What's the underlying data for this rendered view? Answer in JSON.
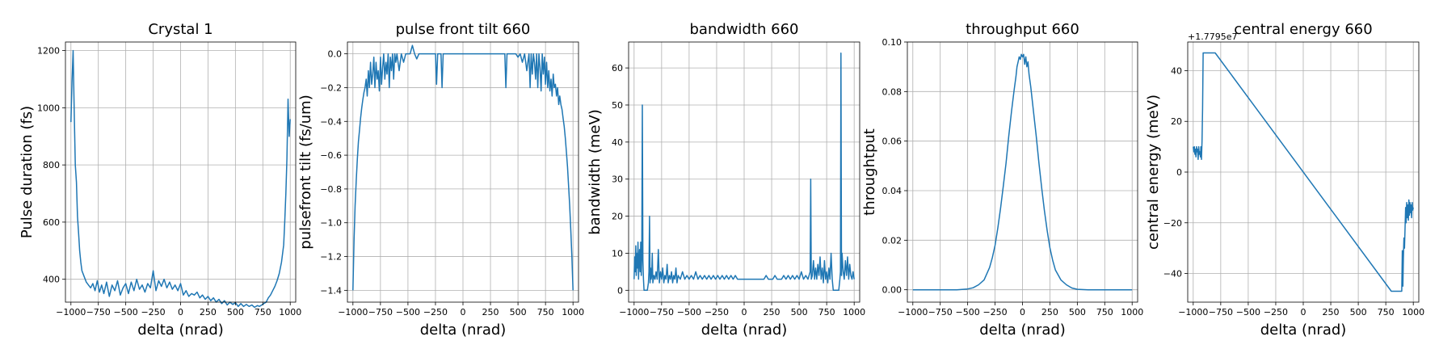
{
  "figure": {
    "series_color": "#1f77b4"
  },
  "chart_data": [
    {
      "type": "line",
      "title": "Crystal 1",
      "xlabel": "delta (nrad)",
      "ylabel": "Pulse duration (fs)",
      "xlim": [
        -1050,
        1050
      ],
      "ylim": [
        320,
        1230
      ],
      "xticks": [
        -1000,
        -750,
        -500,
        -250,
        0,
        250,
        500,
        750,
        1000
      ],
      "xtick_labels": [
        "−1000",
        "−750",
        "−500",
        "−250",
        "0",
        "250",
        "500",
        "750",
        "1000"
      ],
      "yticks": [
        400,
        600,
        800,
        1000,
        1200
      ],
      "ytick_labels": [
        "400",
        "600",
        "800",
        "1000",
        "1200"
      ],
      "offset_text": "",
      "grid": true,
      "x": [
        -1000,
        -990,
        -980,
        -970,
        -960,
        -950,
        -940,
        -930,
        -920,
        -910,
        -900,
        -880,
        -860,
        -840,
        -820,
        -800,
        -780,
        -760,
        -740,
        -720,
        -700,
        -675,
        -650,
        -625,
        -600,
        -575,
        -550,
        -525,
        -500,
        -475,
        -450,
        -425,
        -400,
        -375,
        -350,
        -325,
        -300,
        -275,
        -250,
        -225,
        -200,
        -175,
        -150,
        -125,
        -100,
        -75,
        -50,
        -25,
        0,
        25,
        50,
        75,
        100,
        125,
        150,
        175,
        200,
        225,
        250,
        275,
        300,
        325,
        350,
        375,
        400,
        425,
        450,
        475,
        500,
        525,
        550,
        575,
        600,
        625,
        650,
        675,
        700,
        720,
        740,
        760,
        780,
        800,
        820,
        840,
        860,
        880,
        900,
        920,
        940,
        950,
        960,
        970,
        980,
        990,
        1000
      ],
      "y": [
        950,
        1090,
        1200,
        980,
        800,
        740,
        620,
        560,
        500,
        460,
        430,
        410,
        390,
        380,
        370,
        385,
        360,
        395,
        355,
        380,
        350,
        390,
        340,
        380,
        360,
        395,
        345,
        370,
        385,
        350,
        390,
        360,
        400,
        365,
        380,
        355,
        385,
        370,
        430,
        360,
        395,
        375,
        400,
        370,
        390,
        365,
        380,
        360,
        385,
        345,
        360,
        340,
        350,
        345,
        355,
        335,
        345,
        330,
        340,
        325,
        335,
        320,
        330,
        315,
        325,
        310,
        320,
        312,
        318,
        305,
        315,
        305,
        312,
        305,
        310,
        302,
        308,
        305,
        310,
        315,
        320,
        335,
        345,
        360,
        375,
        395,
        420,
        460,
        520,
        600,
        700,
        820,
        1030,
        900,
        960
      ]
    },
    {
      "type": "line",
      "title": "pulse front tilt 660",
      "xlabel": "delta (nrad)",
      "ylabel": "pulsefront tilt (fs/um)",
      "xlim": [
        -1050,
        1050
      ],
      "ylim": [
        -1.47,
        0.07
      ],
      "xticks": [
        -1000,
        -750,
        -500,
        -250,
        0,
        250,
        500,
        750,
        1000
      ],
      "xtick_labels": [
        "−1000",
        "−750",
        "−500",
        "−250",
        "0",
        "250",
        "500",
        "750",
        "1000"
      ],
      "yticks": [
        -1.4,
        -1.2,
        -1.0,
        -0.8,
        -0.6,
        -0.4,
        -0.2,
        0.0
      ],
      "ytick_labels": [
        "−1.4",
        "−1.2",
        "−1.0",
        "−0.8",
        "−0.6",
        "−0.4",
        "−0.2",
        "0.0"
      ],
      "offset_text": "",
      "grid": true,
      "x": [
        -1000,
        -990,
        -980,
        -970,
        -960,
        -950,
        -940,
        -930,
        -920,
        -910,
        -900,
        -890,
        -880,
        -870,
        -860,
        -850,
        -840,
        -830,
        -820,
        -810,
        -800,
        -790,
        -780,
        -770,
        -760,
        -750,
        -740,
        -730,
        -720,
        -710,
        -700,
        -690,
        -680,
        -670,
        -660,
        -650,
        -640,
        -630,
        -620,
        -610,
        -600,
        -580,
        -560,
        -540,
        -520,
        -500,
        -480,
        -460,
        -440,
        -420,
        -400,
        -300,
        -250,
        -240,
        -230,
        -200,
        -190,
        -180,
        -150,
        -100,
        -50,
        0,
        50,
        100,
        150,
        200,
        250,
        300,
        350,
        380,
        390,
        400,
        420,
        440,
        460,
        480,
        500,
        520,
        540,
        560,
        580,
        600,
        610,
        620,
        630,
        640,
        650,
        660,
        670,
        680,
        690,
        700,
        710,
        720,
        730,
        740,
        750,
        760,
        770,
        780,
        790,
        800,
        810,
        820,
        830,
        840,
        850,
        860,
        870,
        880,
        890,
        900,
        910,
        920,
        930,
        940,
        950,
        960,
        970,
        980,
        990,
        1000
      ],
      "y": [
        -1.4,
        -1.1,
        -0.9,
        -0.75,
        -0.62,
        -0.52,
        -0.45,
        -0.38,
        -0.32,
        -0.27,
        -0.23,
        -0.2,
        -0.15,
        -0.25,
        -0.1,
        -0.2,
        -0.05,
        -0.18,
        -0.12,
        -0.02,
        -0.2,
        -0.05,
        -0.15,
        -0.1,
        -0.22,
        -0.02,
        -0.18,
        -0.08,
        0.0,
        -0.15,
        -0.05,
        -0.12,
        0.0,
        -0.2,
        -0.02,
        -0.1,
        0.0,
        -0.15,
        0.0,
        -0.05,
        0.0,
        -0.1,
        0.0,
        -0.05,
        0.0,
        0.0,
        0.0,
        0.05,
        0.0,
        -0.03,
        0.0,
        0.0,
        0.0,
        -0.18,
        0.0,
        0.0,
        -0.2,
        0.0,
        0.0,
        0.0,
        0.0,
        0.0,
        0.0,
        0.0,
        0.0,
        0.0,
        0.0,
        0.0,
        0.0,
        0.0,
        -0.2,
        0.0,
        0.0,
        0.0,
        0.0,
        0.0,
        -0.02,
        0.0,
        -0.05,
        0.0,
        -0.1,
        0.0,
        -0.2,
        0.0,
        -0.12,
        0.0,
        -0.05,
        -0.15,
        0.0,
        -0.2,
        0.0,
        -0.08,
        -0.22,
        0.0,
        -0.12,
        -0.02,
        -0.18,
        -0.05,
        -0.2,
        -0.1,
        -0.22,
        -0.15,
        -0.25,
        -0.12,
        -0.2,
        -0.18,
        -0.25,
        -0.2,
        -0.3,
        -0.25,
        -0.3,
        -0.33,
        -0.38,
        -0.43,
        -0.5,
        -0.58,
        -0.67,
        -0.78,
        -0.9,
        -1.05,
        -1.2,
        -1.4
      ]
    },
    {
      "type": "line",
      "title": "bandwidth 660",
      "xlabel": "delta (nrad)",
      "ylabel": "bandwidth (meV)",
      "xlim": [
        -1050,
        1050
      ],
      "ylim": [
        -3.2,
        67
      ],
      "xticks": [
        -1000,
        -750,
        -500,
        -250,
        0,
        250,
        500,
        750,
        1000
      ],
      "xtick_labels": [
        "−1000",
        "−750",
        "−500",
        "−250",
        "0",
        "250",
        "500",
        "750",
        "1000"
      ],
      "yticks": [
        0,
        10,
        20,
        30,
        40,
        50,
        60
      ],
      "ytick_labels": [
        "0",
        "10",
        "20",
        "30",
        "40",
        "50",
        "60"
      ],
      "offset_text": "",
      "grid": true,
      "x": [
        -1000,
        -995,
        -990,
        -985,
        -980,
        -975,
        -970,
        -965,
        -960,
        -955,
        -950,
        -945,
        -940,
        -935,
        -930,
        -925,
        -920,
        -915,
        -910,
        -900,
        -890,
        -880,
        -870,
        -865,
        -860,
        -855,
        -850,
        -845,
        -840,
        -835,
        -830,
        -820,
        -810,
        -800,
        -790,
        -780,
        -770,
        -760,
        -750,
        -740,
        -730,
        -720,
        -710,
        -700,
        -690,
        -680,
        -670,
        -660,
        -650,
        -640,
        -630,
        -620,
        -610,
        -600,
        -580,
        -560,
        -540,
        -520,
        -500,
        -480,
        -460,
        -440,
        -420,
        -400,
        -380,
        -360,
        -340,
        -320,
        -300,
        -280,
        -260,
        -240,
        -220,
        -200,
        -180,
        -160,
        -140,
        -120,
        -100,
        -80,
        -60,
        -40,
        -20,
        0,
        20,
        40,
        60,
        80,
        100,
        120,
        140,
        160,
        180,
        200,
        220,
        240,
        260,
        280,
        300,
        320,
        340,
        360,
        380,
        400,
        420,
        440,
        460,
        480,
        500,
        520,
        540,
        560,
        580,
        600,
        605,
        610,
        620,
        630,
        640,
        650,
        660,
        670,
        680,
        690,
        700,
        710,
        720,
        730,
        740,
        750,
        760,
        770,
        780,
        790,
        800,
        810,
        820,
        830,
        840,
        850,
        860,
        870,
        875,
        880,
        885,
        890,
        900,
        910,
        920,
        930,
        940,
        950,
        960,
        970,
        980,
        990,
        1000
      ],
      "y": [
        3,
        9,
        5,
        12,
        4,
        10,
        6,
        13,
        3,
        8,
        11,
        5,
        13,
        4,
        9,
        50,
        8,
        3,
        0,
        0,
        0,
        0,
        2,
        5,
        20,
        2,
        6,
        3,
        4,
        10,
        2,
        4,
        3,
        5,
        3,
        11,
        2,
        5,
        3,
        6,
        2,
        4,
        3,
        7,
        2,
        4,
        3,
        5,
        2,
        4,
        3,
        6,
        2,
        4,
        3,
        5,
        3,
        4,
        3,
        4,
        3,
        5,
        3,
        4,
        3,
        4,
        3,
        4,
        3,
        4,
        3,
        4,
        3,
        4,
        3,
        4,
        3,
        4,
        3,
        4,
        3,
        3,
        3,
        3,
        3,
        3,
        3,
        3,
        3,
        3,
        3,
        3,
        3,
        4,
        3,
        3,
        3,
        4,
        3,
        3,
        3,
        4,
        3,
        4,
        3,
        4,
        3,
        4,
        3,
        5,
        3,
        4,
        3,
        5,
        30,
        3,
        4,
        8,
        3,
        6,
        3,
        7,
        4,
        9,
        3,
        6,
        2,
        8,
        3,
        5,
        2,
        6,
        3,
        10,
        3,
        0,
        0,
        0,
        0,
        0,
        0,
        3,
        5,
        64,
        4,
        10,
        5,
        3,
        8,
        4,
        9,
        3,
        7,
        4,
        3,
        5,
        3
      ]
    },
    {
      "type": "line",
      "title": "throughput 660",
      "xlabel": "delta (nrad)",
      "ylabel": "throughtput",
      "xlim": [
        -1050,
        1050
      ],
      "ylim": [
        -0.005,
        0.1
      ],
      "xticks": [
        -1000,
        -750,
        -500,
        -250,
        0,
        250,
        500,
        750,
        1000
      ],
      "xtick_labels": [
        "−1000",
        "−750",
        "−500",
        "−250",
        "0",
        "250",
        "500",
        "750",
        "1000"
      ],
      "yticks": [
        0.0,
        0.02,
        0.04,
        0.06,
        0.08,
        0.1
      ],
      "ytick_labels": [
        "0.00",
        "0.02",
        "0.04",
        "0.06",
        "0.08",
        "0.10"
      ],
      "offset_text": "",
      "grid": true,
      "x": [
        -1000,
        -800,
        -600,
        -500,
        -450,
        -400,
        -350,
        -300,
        -275,
        -250,
        -225,
        -200,
        -175,
        -150,
        -125,
        -100,
        -75,
        -60,
        -50,
        -40,
        -30,
        -20,
        -10,
        0,
        10,
        20,
        30,
        40,
        50,
        60,
        75,
        100,
        125,
        150,
        175,
        200,
        225,
        250,
        275,
        300,
        350,
        400,
        450,
        500,
        600,
        800,
        1000
      ],
      "y": [
        0.0,
        0.0,
        0.0,
        0.0003,
        0.0008,
        0.002,
        0.004,
        0.009,
        0.013,
        0.018,
        0.025,
        0.033,
        0.042,
        0.051,
        0.062,
        0.072,
        0.081,
        0.086,
        0.09,
        0.092,
        0.094,
        0.093,
        0.095,
        0.094,
        0.095,
        0.091,
        0.094,
        0.09,
        0.092,
        0.087,
        0.082,
        0.072,
        0.062,
        0.051,
        0.041,
        0.032,
        0.024,
        0.017,
        0.012,
        0.008,
        0.004,
        0.002,
        0.0007,
        0.0002,
        0.0,
        0.0,
        0.0
      ]
    },
    {
      "type": "line",
      "title": "central energy 660",
      "xlabel": "delta (nrad)",
      "ylabel": "central energy (meV)",
      "xlim": [
        -1050,
        1050
      ],
      "ylim": [
        -51.3,
        51.3
      ],
      "xticks": [
        -1000,
        -750,
        -500,
        -250,
        0,
        250,
        500,
        750,
        1000
      ],
      "xtick_labels": [
        "−1000",
        "−750",
        "−500",
        "−250",
        "0",
        "250",
        "500",
        "750",
        "1000"
      ],
      "yticks": [
        -40,
        -20,
        0,
        20,
        40
      ],
      "ytick_labels": [
        "−40",
        "−20",
        "0",
        "20",
        "40"
      ],
      "offset_text": "+1.7795e7",
      "grid": true,
      "x": [
        -1000,
        -995,
        -990,
        -985,
        -980,
        -975,
        -970,
        -965,
        -960,
        -955,
        -950,
        -945,
        -940,
        -935,
        -930,
        -925,
        -920,
        -915,
        -910,
        -905,
        -900,
        -895,
        -890,
        -885,
        -880,
        -875,
        -870,
        -865,
        -860,
        -855,
        -850,
        -845,
        -840,
        -830,
        -820,
        -810,
        -800,
        800,
        810,
        820,
        830,
        840,
        850,
        860,
        870,
        880,
        885,
        890,
        895,
        900,
        905,
        910,
        915,
        920,
        925,
        930,
        935,
        940,
        945,
        950,
        955,
        960,
        965,
        970,
        975,
        980,
        985,
        990,
        995,
        1000
      ],
      "y": [
        10,
        8,
        10,
        7,
        9,
        6,
        10,
        8,
        9,
        5,
        10,
        7,
        8,
        6,
        10,
        5,
        12,
        25,
        47,
        47,
        47,
        47,
        47,
        47,
        47,
        47,
        47,
        47,
        47,
        47,
        47,
        47,
        47,
        47,
        47,
        47,
        47,
        -47,
        -47,
        -47,
        -47,
        -47,
        -47,
        -47,
        -47,
        -47,
        -47,
        -47,
        -47,
        -31,
        -45,
        -34,
        -26,
        -30,
        -22,
        -14,
        -20,
        -12,
        -18,
        -13,
        -19,
        -11,
        -17,
        -12,
        -16,
        -13,
        -18,
        -12,
        -15,
        -14
      ]
    }
  ]
}
